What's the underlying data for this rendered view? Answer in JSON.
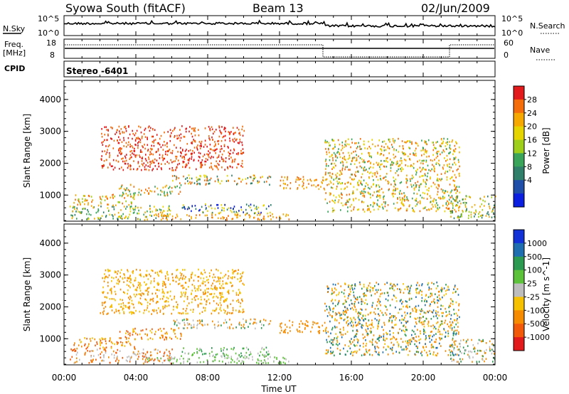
{
  "header": {
    "station": "Syowa South (fitACF)",
    "beam": "Beam 13",
    "date": "02/Jun/2009"
  },
  "top_panels": {
    "nsky_label": "N.Sky",
    "nsky_ticks": [
      "10^5",
      "10^0"
    ],
    "nsearch_label": "N.Search",
    "nsearch_ticks": [
      "10^5",
      "10^0"
    ],
    "freq_label_1": "Freq.",
    "freq_label_2": "[MHz]",
    "freq_ticks": [
      "18",
      "8"
    ],
    "nave_label": "Nave",
    "nave_ticks": [
      "60",
      "0"
    ],
    "cpid_label": "CPID",
    "cpid_value": "Stereo -6401"
  },
  "chart_data": [
    {
      "type": "heatmap",
      "name": "power",
      "ylabel": "Slant Range [km]",
      "yticks": [
        1000,
        2000,
        3000,
        4000
      ],
      "ylim": [
        180,
        4600
      ],
      "xlim_hours": [
        0,
        24
      ],
      "colorbar": {
        "label": "Power [dB]",
        "ticks": [
          "28",
          "24",
          "20",
          "16",
          "12",
          "8",
          "4"
        ],
        "colors": [
          "#e31a1c",
          "#f46d0a",
          "#f6a800",
          "#e6d400",
          "#9ecf1b",
          "#3aa45a",
          "#2f7f6a",
          "#1f4fa8",
          "#0a1fe0"
        ]
      },
      "clusters": [
        {
          "t0": 0.3,
          "t1": 6.0,
          "r0": 250,
          "r1": 700,
          "c": [
            0.2,
            0.4,
            0.6,
            0.8
          ]
        },
        {
          "t0": 0.5,
          "t1": 4.0,
          "r0": 700,
          "r1": 1050,
          "c": [
            0.1,
            0.3,
            0.5
          ]
        },
        {
          "t0": 3.0,
          "t1": 6.5,
          "r0": 1000,
          "r1": 1350,
          "c": [
            0.1,
            0.3,
            0.6
          ]
        },
        {
          "t0": 6.0,
          "t1": 11.5,
          "r0": 1350,
          "r1": 1650,
          "c": [
            0.1,
            0.4,
            0.7
          ]
        },
        {
          "t0": 6.5,
          "t1": 11.5,
          "r0": 450,
          "r1": 750,
          "c": [
            0.4,
            0.7,
            0.95
          ]
        },
        {
          "t0": 4.5,
          "t1": 12.5,
          "r0": 250,
          "r1": 450,
          "c": [
            0.1,
            0.2,
            0.3
          ]
        },
        {
          "t0": 12.0,
          "t1": 14.5,
          "r0": 1200,
          "r1": 1600,
          "c": [
            0.1,
            0.2
          ]
        },
        {
          "t0": 14.5,
          "t1": 22.0,
          "r0": 500,
          "r1": 2800,
          "c": [
            0.1,
            0.3,
            0.4,
            0.6
          ]
        },
        {
          "t0": 21.5,
          "t1": 24.0,
          "r0": 300,
          "r1": 1000,
          "c": [
            0.2,
            0.5,
            0.8
          ]
        },
        {
          "t0": 2.0,
          "t1": 10.0,
          "r0": 1800,
          "r1": 3200,
          "c": [
            0.05,
            0.1
          ]
        }
      ]
    },
    {
      "type": "heatmap",
      "name": "velocity",
      "xlabel": "Time UT",
      "xticks": [
        "00:00",
        "04:00",
        "08:00",
        "12:00",
        "16:00",
        "20:00",
        "00:00"
      ],
      "ylabel": "Slant Range [km]",
      "yticks": [
        1000,
        2000,
        3000,
        4000
      ],
      "ylim": [
        180,
        4600
      ],
      "xlim_hours": [
        0,
        24
      ],
      "colorbar": {
        "label": "Velocity [m s^-1]",
        "ticks": [
          "1000",
          "500",
          "100",
          "25",
          "-25",
          "-100",
          "-500",
          "-1000"
        ],
        "colors": [
          "#1232d8",
          "#1f6fb0",
          "#2c9a50",
          "#5cc23a",
          "#bdbdbd",
          "#f6c200",
          "#f78b00",
          "#f25a0a",
          "#e31a1c"
        ]
      },
      "clusters": [
        {
          "t0": 0.3,
          "t1": 6.0,
          "r0": 250,
          "r1": 700,
          "c": [
            0.5,
            0.7,
            0.85
          ]
        },
        {
          "t0": 0.5,
          "t1": 4.0,
          "r0": 700,
          "r1": 1050,
          "c": [
            0.6,
            0.75,
            0.85
          ]
        },
        {
          "t0": 3.0,
          "t1": 6.5,
          "r0": 1000,
          "r1": 1350,
          "c": [
            0.6,
            0.75,
            0.85
          ]
        },
        {
          "t0": 6.0,
          "t1": 11.5,
          "r0": 1350,
          "r1": 1650,
          "c": [
            0.55,
            0.7,
            0.8,
            0.3
          ]
        },
        {
          "t0": 6.5,
          "t1": 11.5,
          "r0": 450,
          "r1": 750,
          "c": [
            0.45,
            0.4,
            0.3
          ]
        },
        {
          "t0": 4.5,
          "t1": 12.5,
          "r0": 250,
          "r1": 450,
          "c": [
            0.4,
            0.45,
            0.35
          ]
        },
        {
          "t0": 12.0,
          "t1": 14.5,
          "r0": 1200,
          "r1": 1600,
          "c": [
            0.7,
            0.8
          ]
        },
        {
          "t0": 14.5,
          "t1": 22.0,
          "r0": 500,
          "r1": 2800,
          "c": [
            0.6,
            0.75,
            0.8,
            0.3,
            0.1
          ]
        },
        {
          "t0": 21.5,
          "t1": 24.0,
          "r0": 300,
          "r1": 1000,
          "c": [
            0.3,
            0.55,
            0.8
          ]
        },
        {
          "t0": 2.0,
          "t1": 10.0,
          "r0": 1800,
          "r1": 3200,
          "c": [
            0.6,
            0.8
          ]
        }
      ]
    }
  ]
}
